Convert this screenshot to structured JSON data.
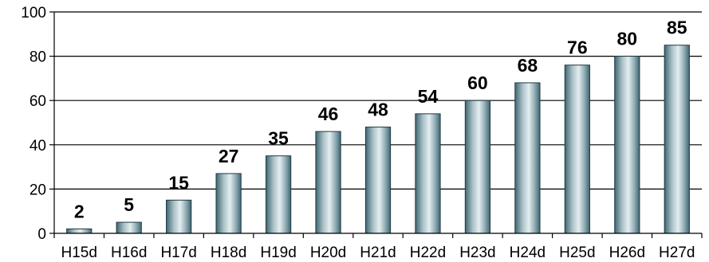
{
  "chart_data": {
    "type": "bar",
    "categories": [
      "H15d",
      "H16d",
      "H17d",
      "H18d",
      "H19d",
      "H20d",
      "H21d",
      "H22d",
      "H23d",
      "H24d",
      "H25d",
      "H26d",
      "H27d"
    ],
    "values": [
      2,
      5,
      15,
      27,
      35,
      46,
      48,
      54,
      60,
      68,
      76,
      80,
      85
    ],
    "title": "",
    "xlabel": "",
    "ylabel": "",
    "ylim": [
      0,
      100
    ],
    "yticks": [
      "0",
      "20",
      "40",
      "60",
      "80",
      "100"
    ],
    "grid": true,
    "legend": "none",
    "bar_color_light": "#e4eef1",
    "bar_color_dark": "#3f6672"
  }
}
